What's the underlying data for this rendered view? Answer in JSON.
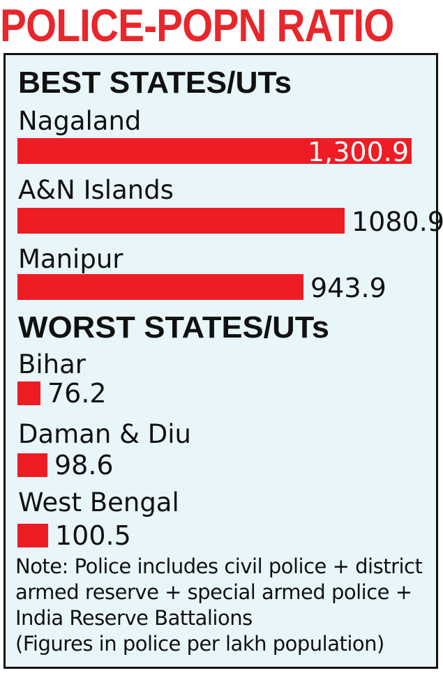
{
  "title": "POLICE-POPN RATIO",
  "note": {
    "lines": [
      "Note: Police includes civil police + district",
      "armed reserve + special armed police +",
      "India Reserve Battalions",
      "(Figures in police per lakh population)"
    ]
  },
  "colors": {
    "bar": "#ee1c24",
    "title": "#e8262b",
    "panel": "#e8f6fa"
  },
  "chart_data": {
    "type": "bar",
    "orientation": "horizontal",
    "groups": [
      {
        "title": "BEST STATES/UTs",
        "items": [
          {
            "label": "Nagaland",
            "value": 1300.9,
            "value_label": "1,300.9"
          },
          {
            "label": "A&N Islands",
            "value": 1080.9,
            "value_label": "1080.9"
          },
          {
            "label": "Manipur",
            "value": 943.9,
            "value_label": "943.9"
          }
        ]
      },
      {
        "title": "WORST STATES/UTs",
        "items": [
          {
            "label": "Bihar",
            "value": 76.2,
            "value_label": "76.2"
          },
          {
            "label": "Daman & Diu",
            "value": 98.6,
            "value_label": "98.6"
          },
          {
            "label": "West Bengal",
            "value": 100.5,
            "value_label": "100.5"
          }
        ]
      }
    ]
  }
}
